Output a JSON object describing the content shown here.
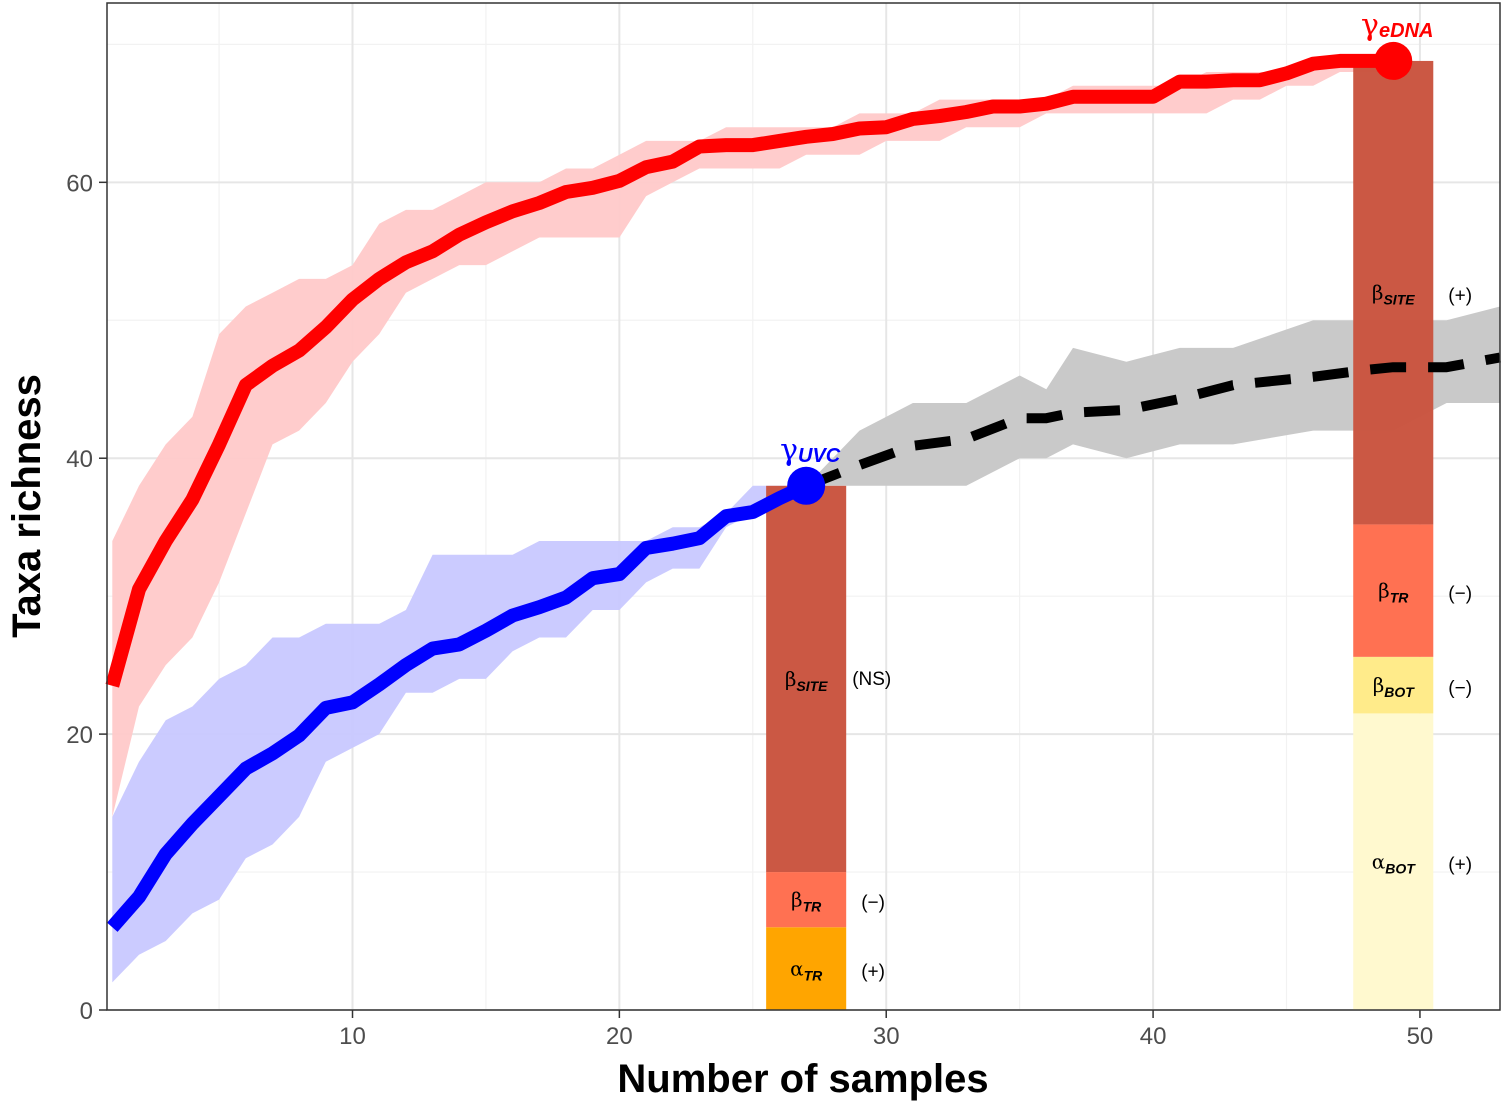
{
  "chart_data": {
    "type": "line",
    "xlabel": "Number of samples",
    "ylabel": "Taxa richness",
    "xlim": [
      0.8,
      53
    ],
    "ylim": [
      0,
      73
    ],
    "x_ticks": [
      10,
      20,
      30,
      40,
      50
    ],
    "y_ticks": [
      0,
      20,
      40,
      60
    ],
    "grid": true,
    "colors": {
      "edna": "#ff0000",
      "edna_band": "#ffc9c9",
      "uvc": "#0000ff",
      "uvc_band": "#c8c8ff",
      "extrap": "#000000",
      "extrap_band": "#c9c9c9",
      "beta_site": "#c9533e",
      "beta_tr": "#ff7152",
      "alpha_tr": "#ffa500",
      "beta_bot": "#ffeb8a",
      "alpha_bot": "#fff9cf"
    },
    "series": [
      {
        "name": "eDNA",
        "x": [
          1,
          2,
          3,
          4,
          5,
          6,
          7,
          8,
          9,
          10,
          11,
          12,
          13,
          14,
          15,
          16,
          17,
          18,
          19,
          20,
          21,
          22,
          23,
          24,
          25,
          26,
          27,
          28,
          29,
          30,
          31,
          32,
          33,
          34,
          35,
          36,
          37,
          38,
          39,
          40,
          41,
          42,
          43,
          44,
          45,
          46,
          47,
          48,
          49
        ],
        "y": [
          23.5,
          30.5,
          34,
          37,
          41,
          45.3,
          46.7,
          47.8,
          49.5,
          51.5,
          53,
          54.2,
          55,
          56.2,
          57.1,
          57.9,
          58.5,
          59.3,
          59.6,
          60.1,
          61.1,
          61.5,
          62.6,
          62.7,
          62.7,
          63,
          63.3,
          63.5,
          63.9,
          64,
          64.6,
          64.8,
          65.1,
          65.5,
          65.5,
          65.7,
          66.2,
          66.2,
          66.2,
          66.2,
          67.3,
          67.3,
          67.4,
          67.4,
          67.9,
          68.6,
          68.8,
          68.8,
          68.8
        ],
        "lower": [
          14,
          22,
          25,
          27,
          31,
          36,
          41,
          42,
          44,
          47,
          49,
          52,
          53,
          54,
          54,
          55,
          56,
          56,
          56,
          56,
          59,
          60,
          61,
          61,
          61,
          61,
          62,
          62,
          62,
          63,
          63,
          63,
          64,
          64,
          64,
          65,
          65,
          65,
          65,
          65,
          65,
          65,
          66,
          66,
          67,
          67,
          68,
          68,
          68
        ],
        "upper": [
          34,
          38,
          41,
          43,
          49,
          51,
          52,
          53,
          53,
          54,
          57,
          58,
          58,
          59,
          60,
          60,
          60,
          61,
          61,
          62,
          63,
          63,
          63,
          64,
          64,
          64,
          64,
          64,
          65,
          65,
          65,
          66,
          66,
          66,
          66,
          66,
          67,
          67,
          67,
          67,
          67,
          68,
          68,
          68,
          68,
          69,
          69,
          69,
          69
        ]
      },
      {
        "name": "UVC",
        "x": [
          1,
          2,
          3,
          4,
          5,
          6,
          7,
          8,
          9,
          10,
          11,
          12,
          13,
          14,
          15,
          16,
          17,
          18,
          19,
          20,
          21,
          22,
          23,
          24,
          25,
          26,
          27
        ],
        "y": [
          6,
          8.2,
          11.3,
          13.5,
          15.5,
          17.5,
          18.6,
          19.9,
          21.9,
          22.3,
          23.6,
          25,
          26.2,
          26.5,
          27.5,
          28.6,
          29.2,
          29.9,
          31.3,
          31.6,
          33.5,
          33.8,
          34.2,
          35.8,
          36.1,
          37.1,
          38
        ],
        "lower": [
          2,
          4,
          5,
          7,
          8,
          11,
          12,
          14,
          18,
          19,
          20,
          23,
          23,
          24,
          24,
          26,
          27,
          27,
          29,
          29,
          31,
          32,
          32,
          35,
          36,
          37,
          38
        ],
        "upper": [
          14,
          18,
          21,
          22,
          24,
          25,
          27,
          27,
          28,
          28,
          28,
          29,
          33,
          33,
          33,
          33,
          34,
          34,
          34,
          34,
          34,
          35,
          35,
          36,
          38,
          38,
          38
        ]
      },
      {
        "name": "UVC extrapolation",
        "x": [
          27,
          29,
          31,
          33,
          35,
          36,
          37,
          39,
          41,
          43,
          46,
          48,
          49,
          51,
          53
        ],
        "y": [
          38,
          39.5,
          40.9,
          41.4,
          42.9,
          42.9,
          43.3,
          43.5,
          44.3,
          45.3,
          45.9,
          46.4,
          46.6,
          46.6,
          47.3
        ],
        "lower": [
          38,
          38,
          38,
          38,
          40,
          40,
          41,
          40,
          41,
          41,
          42,
          42,
          42,
          44,
          44
        ],
        "upper": [
          38,
          42,
          44,
          44,
          46,
          45,
          48,
          47,
          48,
          48,
          50,
          50,
          50,
          50,
          51
        ]
      }
    ],
    "points": [
      {
        "name": "gamma-edna",
        "x": 49,
        "y": 68.8
      },
      {
        "name": "gamma-uvc",
        "x": 27,
        "y": 38
      }
    ],
    "stacked_bars": [
      {
        "name": "uvc-partition",
        "x_center": 27,
        "segments": [
          {
            "key": "alpha_tr",
            "from": 0,
            "to": 6,
            "sym": "α",
            "sub": "TR",
            "sig": "(+)"
          },
          {
            "key": "beta_tr",
            "from": 6,
            "to": 10,
            "sym": "β",
            "sub": "TR",
            "sig": "(−)"
          },
          {
            "key": "beta_site",
            "from": 10,
            "to": 38,
            "sym": "β",
            "sub": "SITE",
            "sig": "(NS)"
          }
        ]
      },
      {
        "name": "edna-partition",
        "x_center": 49,
        "segments": [
          {
            "key": "alpha_bot",
            "from": 0,
            "to": 21.5,
            "sym": "α",
            "sub": "BOT",
            "sig": "(+)"
          },
          {
            "key": "beta_bot",
            "from": 21.5,
            "to": 25.6,
            "sym": "β",
            "sub": "BOT",
            "sig": "(−)"
          },
          {
            "key": "beta_tr",
            "from": 25.6,
            "to": 35.2,
            "sym": "β",
            "sub": "TR",
            "sig": "(−)"
          },
          {
            "key": "beta_site",
            "from": 35.2,
            "to": 68.8,
            "sym": "β",
            "sub": "SITE",
            "sig": "(+)"
          }
        ]
      }
    ],
    "annotations": [
      {
        "name": "gamma-edna-label",
        "sym": "γ",
        "sub": "eDNA",
        "color": "#ff0000",
        "anchor_x": 49,
        "anchor_y": 68.8
      },
      {
        "name": "gamma-uvc-label",
        "sym": "γ",
        "sub": "UVC",
        "color": "#0000ff",
        "anchor_x": 27,
        "anchor_y": 38
      }
    ]
  }
}
